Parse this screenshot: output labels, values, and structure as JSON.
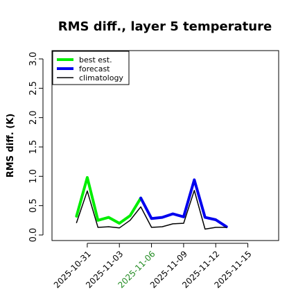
{
  "chart_data": {
    "type": "line",
    "title": "RMS diff., layer 5 temperature",
    "xlabel": "",
    "ylabel": "RMS diff. (K)",
    "ylim": [
      0.0,
      3.0
    ],
    "yticks": [
      "0.0",
      "0.5",
      "1.0",
      "1.5",
      "2.0",
      "2.5",
      "3.0"
    ],
    "xlim": [
      "2025-10-29",
      "2025-11-16"
    ],
    "xticks": [
      {
        "label": "2025-10-31",
        "color": "#000000"
      },
      {
        "label": "2025-11-03",
        "color": "#000000"
      },
      {
        "label": "2025-11-06",
        "color": "#228b22"
      },
      {
        "label": "2025-11-09",
        "color": "#000000"
      },
      {
        "label": "2025-11-12",
        "color": "#000000"
      },
      {
        "label": "2025-11-15",
        "color": "#000000"
      }
    ],
    "x": [
      "2025-10-30",
      "2025-10-31",
      "2025-11-01",
      "2025-11-02",
      "2025-11-03",
      "2025-11-04",
      "2025-11-05",
      "2025-11-06",
      "2025-11-07",
      "2025-11-08",
      "2025-11-09",
      "2025-11-10",
      "2025-11-11",
      "2025-11-12",
      "2025-11-13"
    ],
    "legend_position": "top-left",
    "grid": false,
    "series": [
      {
        "name": "best est.",
        "color": "#00ee00",
        "values": [
          0.32,
          0.98,
          0.25,
          0.3,
          0.2,
          0.33,
          0.63,
          null,
          null,
          null,
          null,
          null,
          null,
          null,
          null
        ]
      },
      {
        "name": "forecast",
        "color": "#0000ee",
        "values": [
          null,
          null,
          null,
          null,
          null,
          null,
          0.63,
          0.28,
          0.3,
          0.36,
          0.31,
          0.94,
          0.3,
          0.26,
          0.14
        ]
      },
      {
        "name": "climatology",
        "color": "#000000",
        "values": [
          0.21,
          0.75,
          0.13,
          0.14,
          0.12,
          0.25,
          0.48,
          0.13,
          0.14,
          0.19,
          0.2,
          0.76,
          0.1,
          0.13,
          0.13
        ]
      }
    ]
  }
}
